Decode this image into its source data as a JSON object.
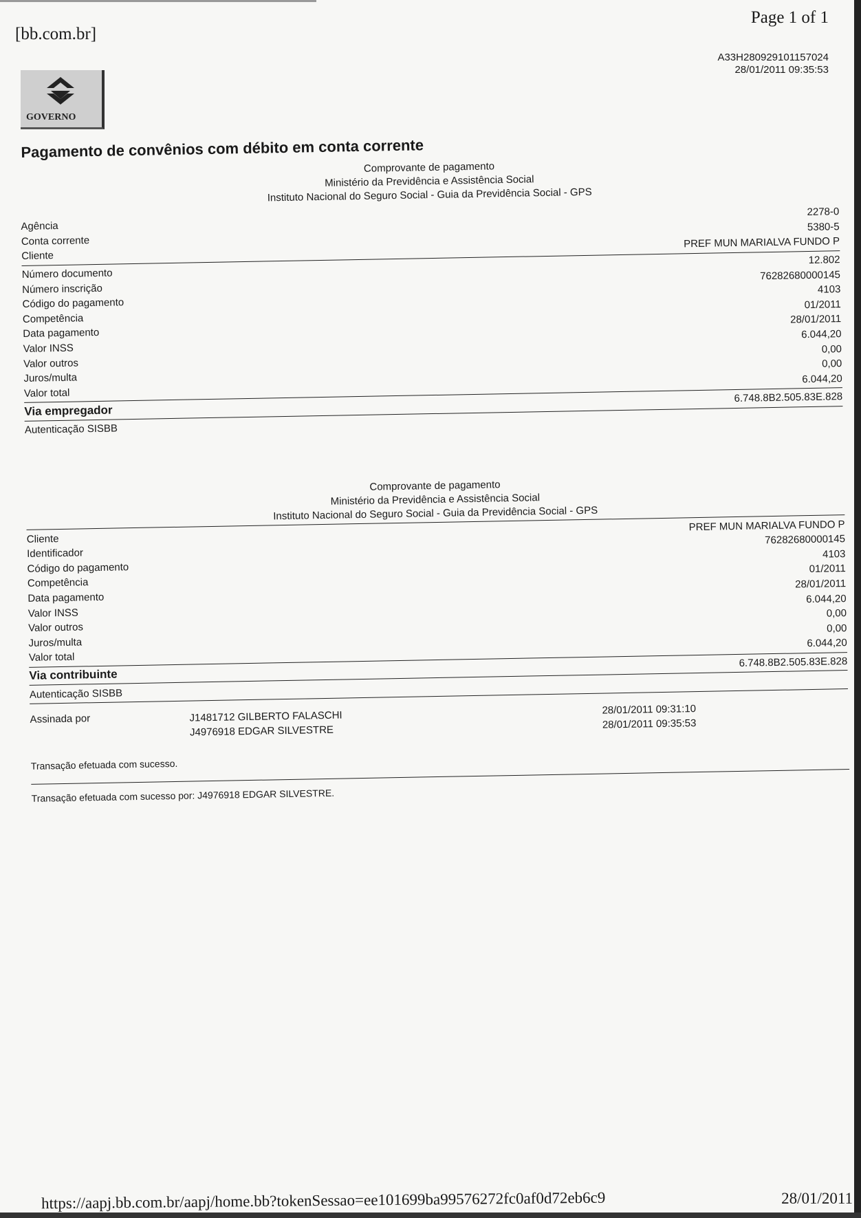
{
  "header": {
    "site": "[bb.com.br]",
    "page": "Page 1 of 1",
    "code": "A33H280929101157024",
    "datetime": "28/01/2011 09:35:53",
    "logo_text": "GOVERNO"
  },
  "title": "Pagamento de convênios com débito em conta corrente",
  "section1": {
    "heading": [
      "Comprovante de pagamento",
      "Ministério da Previdência e Assistência Social",
      "Instituto Nacional do Seguro Social - Guia da Previdência Social - GPS"
    ],
    "account": [
      {
        "label": "Agência",
        "value": "2278-0"
      },
      {
        "label": "Conta corrente",
        "value": "5380-5"
      },
      {
        "label": "Cliente",
        "value": "PREF MUN MARIALVA FUNDO P"
      }
    ],
    "fields": [
      {
        "label": "Número documento",
        "value": "12.802"
      },
      {
        "label": "Número inscrição",
        "value": "76282680000145"
      },
      {
        "label": "Código do pagamento",
        "value": "4103"
      },
      {
        "label": "Competência",
        "value": "01/2011"
      },
      {
        "label": "Data pagamento",
        "value": "28/01/2011"
      },
      {
        "label": "Valor INSS",
        "value": "6.044,20"
      },
      {
        "label": "Valor outros",
        "value": "0,00"
      },
      {
        "label": "Juros/multa",
        "value": "0,00"
      },
      {
        "label": "Valor total",
        "value": "6.044,20"
      }
    ],
    "via": "Via empregador",
    "auth_label": "Autenticação SISBB",
    "auth_value": "6.748.8B2.505.83E.828"
  },
  "section2": {
    "heading": [
      "Comprovante de pagamento",
      "Ministério da Previdência e Assistência Social",
      "Instituto Nacional do Seguro Social - Guia da Previdência Social - GPS"
    ],
    "fields": [
      {
        "label": "Cliente",
        "value": "PREF MUN MARIALVA FUNDO P"
      },
      {
        "label": "Identificador",
        "value": "76282680000145"
      },
      {
        "label": "Código do pagamento",
        "value": "4103"
      },
      {
        "label": "Competência",
        "value": "01/2011"
      },
      {
        "label": "Data pagamento",
        "value": "28/01/2011"
      },
      {
        "label": "Valor INSS",
        "value": "6.044,20"
      },
      {
        "label": "Valor outros",
        "value": "0,00"
      },
      {
        "label": "Juros/multa",
        "value": "0,00"
      },
      {
        "label": "Valor total",
        "value": "6.044,20"
      }
    ],
    "via": "Via contribuinte",
    "auth_label": "Autenticação SISBB",
    "auth_value": "6.748.8B2.505.83E.828"
  },
  "signatures": {
    "label": "Assinada por",
    "items": [
      {
        "name": "J1481712 GILBERTO FALASCHI",
        "datetime": "28/01/2011 09:31:10"
      },
      {
        "name": "J4976918 EDGAR SILVESTRE",
        "datetime": "28/01/2011 09:35:53"
      }
    ]
  },
  "status": "Transação efetuada com sucesso.",
  "status_by": "Transação efetuada com sucesso por: J4976918 EDGAR SILVESTRE.",
  "footer": {
    "url": "https://aapj.bb.com.br/aapj/home.bb?tokenSessao=ee101699ba99576272fc0af0d72eb6c9",
    "date": "28/01/2011"
  }
}
